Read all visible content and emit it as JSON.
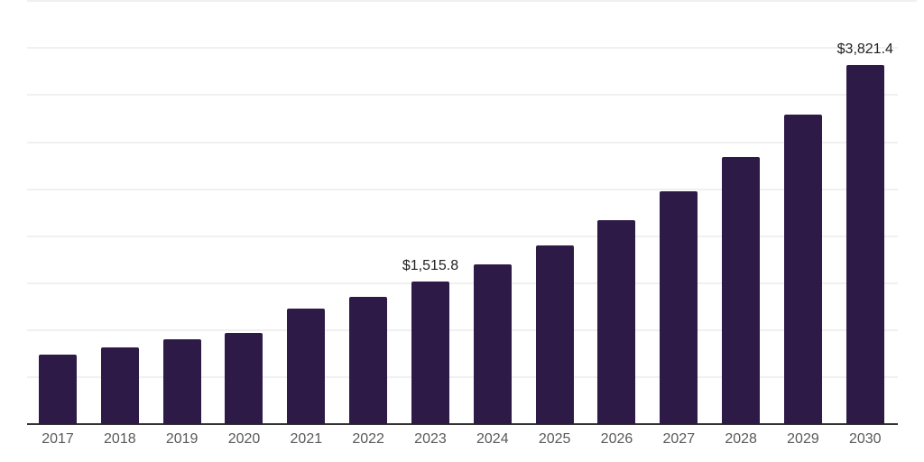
{
  "chart_data": {
    "type": "bar",
    "categories": [
      "2017",
      "2018",
      "2019",
      "2020",
      "2021",
      "2022",
      "2023",
      "2024",
      "2025",
      "2026",
      "2027",
      "2028",
      "2029",
      "2030"
    ],
    "values": [
      740,
      815,
      900,
      970,
      1230,
      1355,
      1515.8,
      1700,
      1900,
      2170,
      2480,
      2845,
      3295,
      3821.4
    ],
    "ylim": [
      0,
      4500
    ],
    "gridline_values": [
      500,
      1000,
      1500,
      2000,
      2500,
      3000,
      3500,
      4000,
      4500
    ],
    "grid": "horizontal",
    "legend": "none",
    "y_axis_tick_labels_visible": false,
    "data_labels": [
      {
        "category": "2023",
        "text": "$1,515.8"
      },
      {
        "category": "2030",
        "text": "$3,821.4"
      }
    ],
    "colors": {
      "bar": "#2e1a47",
      "gridline": "#f0f0f0",
      "axis_line": "#333333",
      "tick_label": "#595959",
      "data_label": "#222222",
      "background": "#ffffff"
    }
  }
}
